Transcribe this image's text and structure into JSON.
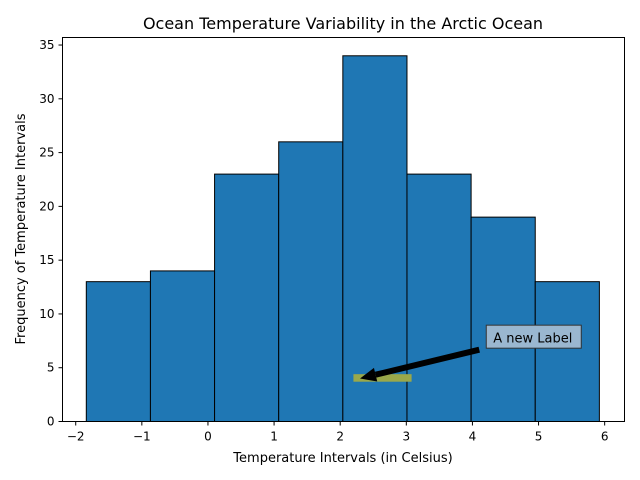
{
  "chart_data": {
    "type": "bar",
    "title": "Ocean Temperature Variability in the Arctic Ocean",
    "xlabel": "Temperature Intervals (in Celsius)",
    "ylabel": "Frequency of Temperature Intervals",
    "xlim": [
      -2.2,
      6.3
    ],
    "ylim": [
      0,
      35.7
    ],
    "x_ticks": [
      -2,
      -1,
      0,
      1,
      2,
      3,
      4,
      5,
      6
    ],
    "y_ticks": [
      0,
      5,
      10,
      15,
      20,
      25,
      30,
      35
    ],
    "bin_edges": [
      -1.84,
      -0.87,
      0.1,
      1.07,
      2.04,
      3.01,
      3.98,
      4.95,
      5.92
    ],
    "values": [
      13,
      14,
      23,
      26,
      34,
      23,
      19,
      13
    ],
    "grid": false,
    "colors": {
      "bar_fill": "#1f77b4",
      "bar_edge": "#000000",
      "highlight": "#9aa84a",
      "annotation_box": "#9ab7d0",
      "arrow": "#000000"
    },
    "annotation": {
      "text": "A new Label",
      "text_pos": [
        4.3,
        7.7
      ],
      "arrow_target": [
        2.3,
        4.0
      ],
      "highlight_x": [
        2.2,
        3.08
      ],
      "highlight_y": [
        3.7,
        4.4
      ]
    }
  }
}
